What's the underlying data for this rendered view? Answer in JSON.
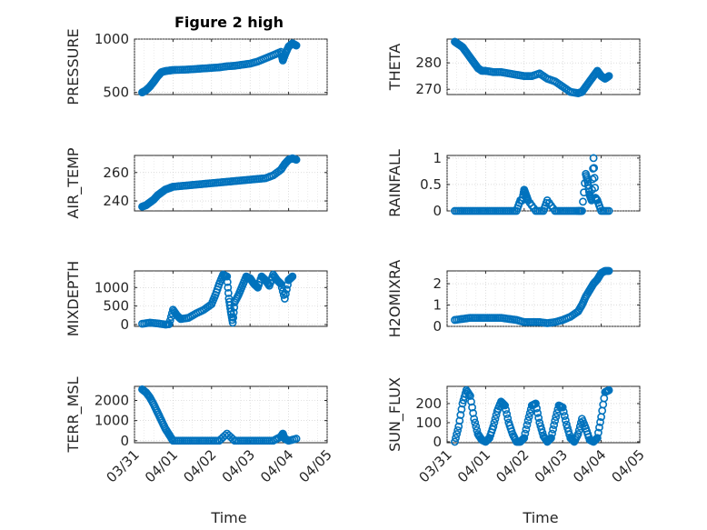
{
  "page": {
    "title": "Figure 2 high"
  },
  "colors": {
    "marker": "#0072bd",
    "axis": "#262626",
    "grid": "#c8c8c8"
  },
  "chart_data": [
    {
      "id": "pressure",
      "type": "scatter",
      "ylabel": "PRESSURE",
      "title": "Figure 2 high",
      "ylim": [
        480,
        1000
      ],
      "yticks": [
        500,
        1000
      ],
      "yticklabels": [
        "500",
        "1000"
      ],
      "xlim": [
        0,
        5
      ],
      "xticks": [
        0,
        1,
        2,
        3,
        4,
        5
      ],
      "xticklabels": [
        "03/31",
        "04/01",
        "04/02",
        "04/03",
        "04/04",
        "04/05"
      ],
      "grid": true,
      "marker": "o",
      "x": [
        0.2,
        0.3,
        0.4,
        0.5,
        0.6,
        0.7,
        0.8,
        0.9,
        1.0,
        1.2,
        1.4,
        1.6,
        1.8,
        2.0,
        2.2,
        2.4,
        2.6,
        2.8,
        3.0,
        3.2,
        3.4,
        3.6,
        3.8,
        3.85,
        3.9,
        4.0,
        4.1,
        4.2
      ],
      "y": [
        500,
        520,
        555,
        600,
        650,
        690,
        700,
        705,
        710,
        712,
        715,
        720,
        725,
        730,
        735,
        745,
        750,
        760,
        770,
        790,
        820,
        850,
        880,
        800,
        850,
        930,
        960,
        940
      ]
    },
    {
      "id": "theta",
      "type": "scatter",
      "ylabel": "THETA",
      "ylim": [
        268,
        289
      ],
      "yticks": [
        270,
        280
      ],
      "yticklabels": [
        "270",
        "280"
      ],
      "xlim": [
        0,
        5
      ],
      "xticks": [
        0,
        1,
        2,
        3,
        4,
        5
      ],
      "xticklabels": [
        "03/31",
        "04/01",
        "04/02",
        "04/03",
        "04/04",
        "04/05"
      ],
      "grid": true,
      "marker": "o",
      "x": [
        0.2,
        0.3,
        0.4,
        0.5,
        0.6,
        0.7,
        0.8,
        0.9,
        1.0,
        1.2,
        1.4,
        1.6,
        1.8,
        2.0,
        2.2,
        2.4,
        2.6,
        2.8,
        3.0,
        3.2,
        3.4,
        3.5,
        3.6,
        3.7,
        3.8,
        3.9,
        4.0,
        4.1,
        4.2
      ],
      "y": [
        288,
        287,
        286,
        284,
        282,
        280,
        278,
        277,
        277,
        276.5,
        276.5,
        276,
        275.5,
        275,
        275,
        276,
        274,
        273,
        271,
        269,
        268.5,
        269,
        271,
        273,
        275,
        277,
        275,
        274,
        275
      ]
    },
    {
      "id": "air_temp",
      "type": "scatter",
      "ylabel": "AIR_TEMP",
      "ylim": [
        233,
        272
      ],
      "yticks": [
        240,
        260
      ],
      "yticklabels": [
        "240",
        "260"
      ],
      "xlim": [
        0,
        5
      ],
      "xticks": [
        0,
        1,
        2,
        3,
        4,
        5
      ],
      "xticklabels": [
        "03/31",
        "04/01",
        "04/02",
        "04/03",
        "04/04",
        "04/05"
      ],
      "grid": true,
      "marker": "o",
      "x": [
        0.2,
        0.3,
        0.4,
        0.5,
        0.6,
        0.7,
        0.8,
        0.9,
        1.0,
        1.2,
        1.4,
        1.6,
        1.8,
        2.0,
        2.2,
        2.4,
        2.6,
        2.8,
        3.0,
        3.2,
        3.4,
        3.6,
        3.8,
        3.9,
        4.0,
        4.1,
        4.2
      ],
      "y": [
        236,
        237,
        239,
        241,
        244,
        246,
        248,
        249,
        250,
        250.5,
        251,
        251.5,
        252,
        252.5,
        253,
        253.5,
        254,
        254.5,
        255,
        255.5,
        256,
        258,
        262,
        266,
        269,
        270,
        269
      ]
    },
    {
      "id": "rainfall",
      "type": "scatter",
      "ylabel": "RAINFALL",
      "ylim": [
        0,
        1.05
      ],
      "yticks": [
        0,
        0.5,
        1
      ],
      "yticklabels": [
        "0",
        "0.5",
        "1"
      ],
      "xlim": [
        0,
        5
      ],
      "xticks": [
        0,
        1,
        2,
        3,
        4,
        5
      ],
      "xticklabels": [
        "03/31",
        "04/01",
        "04/02",
        "04/03",
        "04/04",
        "04/05"
      ],
      "grid": true,
      "marker": "o",
      "x": [
        0.2,
        0.4,
        0.6,
        0.8,
        1.0,
        1.2,
        1.4,
        1.6,
        1.8,
        1.9,
        1.95,
        2.0,
        2.05,
        2.1,
        2.3,
        2.5,
        2.6,
        2.8,
        3.0,
        3.2,
        3.4,
        3.5,
        3.6,
        3.65,
        3.7,
        3.75,
        3.8,
        3.85,
        3.9,
        4.0,
        4.2
      ],
      "y": [
        0,
        0,
        0,
        0,
        0,
        0,
        0,
        0,
        0,
        0.2,
        0.2,
        0.4,
        0.3,
        0.2,
        0,
        0,
        0.2,
        0,
        0,
        0,
        0,
        0,
        0.7,
        0.55,
        0.3,
        0.2,
        1.0,
        0.25,
        0.2,
        0,
        0
      ]
    },
    {
      "id": "mixdepth",
      "type": "scatter",
      "ylabel": "MIXDEPTH",
      "ylim": [
        -50,
        1450
      ],
      "yticks": [
        0,
        500,
        1000
      ],
      "yticklabels": [
        "0",
        "500",
        "1000"
      ],
      "xlim": [
        0,
        5
      ],
      "xticks": [
        0,
        1,
        2,
        3,
        4,
        5
      ],
      "xticklabels": [
        "03/31",
        "04/01",
        "04/02",
        "04/03",
        "04/04",
        "04/05"
      ],
      "grid": true,
      "marker": "o",
      "x": [
        0.2,
        0.4,
        0.6,
        0.8,
        0.9,
        1.0,
        1.1,
        1.2,
        1.4,
        1.6,
        1.8,
        2.0,
        2.1,
        2.2,
        2.3,
        2.4,
        2.45,
        2.5,
        2.55,
        2.6,
        2.7,
        2.8,
        2.9,
        3.0,
        3.1,
        3.2,
        3.3,
        3.4,
        3.5,
        3.6,
        3.7,
        3.8,
        3.9,
        4.0,
        4.1
      ],
      "y": [
        20,
        50,
        30,
        0,
        10,
        400,
        250,
        150,
        180,
        300,
        400,
        550,
        800,
        1100,
        1350,
        1300,
        700,
        350,
        50,
        600,
        800,
        1050,
        1300,
        1250,
        1100,
        1000,
        1300,
        1200,
        1050,
        1350,
        1200,
        1100,
        700,
        1200,
        1300
      ]
    },
    {
      "id": "h2omixra",
      "type": "scatter",
      "ylabel": "H2OMIXRA",
      "ylim": [
        0,
        2.6
      ],
      "yticks": [
        0,
        1,
        2
      ],
      "yticklabels": [
        "0",
        "1",
        "2"
      ],
      "xlim": [
        0,
        5
      ],
      "xticks": [
        0,
        1,
        2,
        3,
        4,
        5
      ],
      "xticklabels": [
        "03/31",
        "04/01",
        "04/02",
        "04/03",
        "04/04",
        "04/05"
      ],
      "grid": true,
      "marker": "o",
      "x": [
        0.2,
        0.4,
        0.6,
        0.8,
        1.0,
        1.2,
        1.4,
        1.6,
        1.8,
        2.0,
        2.2,
        2.4,
        2.6,
        2.8,
        3.0,
        3.2,
        3.4,
        3.5,
        3.6,
        3.7,
        3.8,
        3.9,
        4.0,
        4.1,
        4.2
      ],
      "y": [
        0.3,
        0.35,
        0.4,
        0.4,
        0.4,
        0.4,
        0.4,
        0.35,
        0.3,
        0.2,
        0.2,
        0.2,
        0.15,
        0.2,
        0.3,
        0.45,
        0.7,
        1.0,
        1.4,
        1.7,
        2.0,
        2.2,
        2.5,
        2.6,
        2.6
      ]
    },
    {
      "id": "terr_msl",
      "type": "scatter",
      "ylabel": "TERR_MSL",
      "ylim": [
        -100,
        2700
      ],
      "yticks": [
        0,
        1000,
        2000
      ],
      "yticklabels": [
        "0",
        "1000",
        "2000"
      ],
      "xlim": [
        0,
        5
      ],
      "xticks": [
        0,
        1,
        2,
        3,
        4,
        5
      ],
      "xticklabels": [
        "03/31",
        "04/01",
        "04/02",
        "04/03",
        "04/04",
        "04/05"
      ],
      "grid": true,
      "marker": "o",
      "x": [
        0.2,
        0.3,
        0.4,
        0.5,
        0.6,
        0.7,
        0.8,
        0.9,
        1.0,
        1.2,
        1.4,
        1.6,
        1.8,
        2.0,
        2.2,
        2.4,
        2.6,
        2.8,
        3.0,
        3.2,
        3.4,
        3.6,
        3.8,
        3.85,
        3.9,
        4.0,
        4.2
      ],
      "y": [
        2550,
        2400,
        2150,
        1800,
        1400,
        1000,
        600,
        300,
        0,
        0,
        0,
        0,
        0,
        0,
        0,
        350,
        0,
        0,
        0,
        0,
        0,
        0,
        200,
        350,
        100,
        0,
        100
      ]
    },
    {
      "id": "sun_flux",
      "type": "scatter",
      "ylabel": "SUN_FLUX",
      "ylim": [
        -5,
        290
      ],
      "yticks": [
        0,
        100,
        200
      ],
      "yticklabels": [
        "0",
        "100",
        "200"
      ],
      "xlim": [
        0,
        5
      ],
      "xticks": [
        0,
        1,
        2,
        3,
        4,
        5
      ],
      "xticklabels": [
        "03/31",
        "04/01",
        "04/02",
        "04/03",
        "04/04",
        "04/05"
      ],
      "grid": true,
      "marker": "o",
      "x": [
        0.2,
        0.3,
        0.4,
        0.5,
        0.6,
        0.7,
        0.8,
        0.9,
        1.0,
        1.1,
        1.2,
        1.3,
        1.4,
        1.5,
        1.6,
        1.7,
        1.8,
        1.9,
        2.0,
        2.1,
        2.2,
        2.3,
        2.4,
        2.5,
        2.6,
        2.7,
        2.8,
        2.9,
        3.0,
        3.1,
        3.2,
        3.3,
        3.4,
        3.5,
        3.6,
        3.7,
        3.8,
        3.9,
        4.0,
        4.1,
        4.2
      ],
      "y": [
        0,
        80,
        200,
        270,
        240,
        120,
        40,
        10,
        0,
        20,
        80,
        160,
        210,
        190,
        100,
        40,
        0,
        0,
        20,
        110,
        190,
        200,
        100,
        30,
        0,
        20,
        110,
        190,
        180,
        90,
        20,
        0,
        40,
        120,
        70,
        10,
        0,
        20,
        130,
        260,
        270
      ]
    }
  ],
  "xlabel": "Time"
}
